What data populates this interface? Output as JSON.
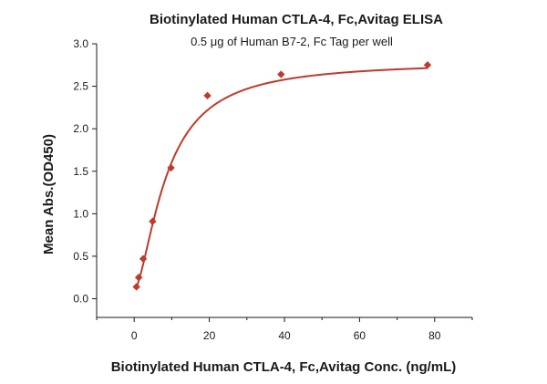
{
  "chart_data": {
    "type": "scatter",
    "title": "Biotinylated Human CTLA-4, Fc,Avitag ELISA",
    "subtitle": "0.5 μg of Human B7-2, Fc Tag per well",
    "xlabel": "Biotinylated Human CTLA-4, Fc,Avitag Conc. (ng/mL)",
    "ylabel": "Mean Abs.(OD450)",
    "xlim": [
      -10,
      90
    ],
    "ylim": [
      -0.22,
      3.0
    ],
    "xticks": [
      0,
      20,
      40,
      60,
      80
    ],
    "yticks": [
      0.0,
      0.5,
      1.0,
      1.5,
      2.0,
      2.5,
      3.0
    ],
    "xtick_labels": [
      "0",
      "20",
      "40",
      "60",
      "80"
    ],
    "ytick_labels": [
      "0.0",
      "0.5",
      "1.0",
      "1.5",
      "2.0",
      "2.5",
      "3.0"
    ],
    "grid": false,
    "color": "#c0392b",
    "series": [
      {
        "points": [
          {
            "x": 0.6,
            "y": 0.14
          },
          {
            "x": 1.2,
            "y": 0.25
          },
          {
            "x": 2.4,
            "y": 0.47
          },
          {
            "x": 4.9,
            "y": 0.91
          },
          {
            "x": 9.8,
            "y": 1.54
          },
          {
            "x": 19.5,
            "y": 2.39
          },
          {
            "x": 39.1,
            "y": 2.64
          },
          {
            "x": 78.1,
            "y": 2.75
          }
        ],
        "fit": {
          "type": "4PL",
          "bottom": 0.1,
          "top": 2.79,
          "ec50": 8.6,
          "hill": 1.6,
          "x_range": [
            0.5,
            78.1
          ]
        }
      }
    ]
  }
}
